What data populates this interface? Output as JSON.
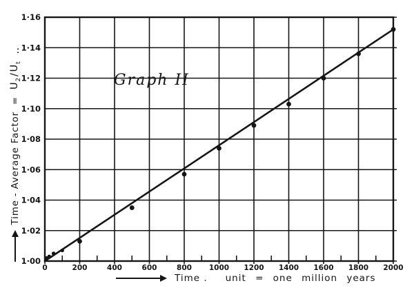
{
  "figure": {
    "title": "Graph II",
    "x_axis": {
      "label": "Time .",
      "unit_label": "unit = one million years",
      "ticks": [
        "0",
        "200",
        "400",
        "600",
        "800",
        "1000",
        "1200",
        "1400",
        "1600",
        "1800",
        "2000"
      ]
    },
    "y_axis": {
      "label": "Time - Average  Factor",
      "equals": "=",
      "frac_num_base": "U",
      "frac_num_sub": "2",
      "frac_den_base": "U",
      "frac_den_sub": "t",
      "trailing_dots": "‥",
      "ticks": [
        "1·00",
        "1·02",
        "1·04",
        "1·06",
        "1·08",
        "1·10",
        "1·12",
        "1·14",
        "1·16"
      ]
    }
  },
  "colors": {
    "ink": "#151515",
    "paper": "#ffffff"
  },
  "chart_data": {
    "type": "scatter",
    "title": "Graph II",
    "xlabel": "Time, unit = one million years",
    "ylabel": "Time-Average Factor = U2/Ut",
    "xlim": [
      0,
      2000
    ],
    "ylim": [
      1.0,
      1.16
    ],
    "x_tick_step": 200,
    "y_tick_step": 0.02,
    "x_minor_tick_step": 100,
    "grid": true,
    "legend": false,
    "points": {
      "x": [
        10,
        25,
        50,
        100,
        200,
        500,
        800,
        1000,
        1200,
        1400,
        1600,
        1800,
        2000
      ],
      "y": [
        1.002,
        1.003,
        1.005,
        1.007,
        1.013,
        1.035,
        1.057,
        1.074,
        1.089,
        1.103,
        1.12,
        1.136,
        1.152
      ]
    },
    "fit_line": {
      "x": [
        0,
        2000
      ],
      "y": [
        1.0,
        1.152
      ]
    }
  }
}
